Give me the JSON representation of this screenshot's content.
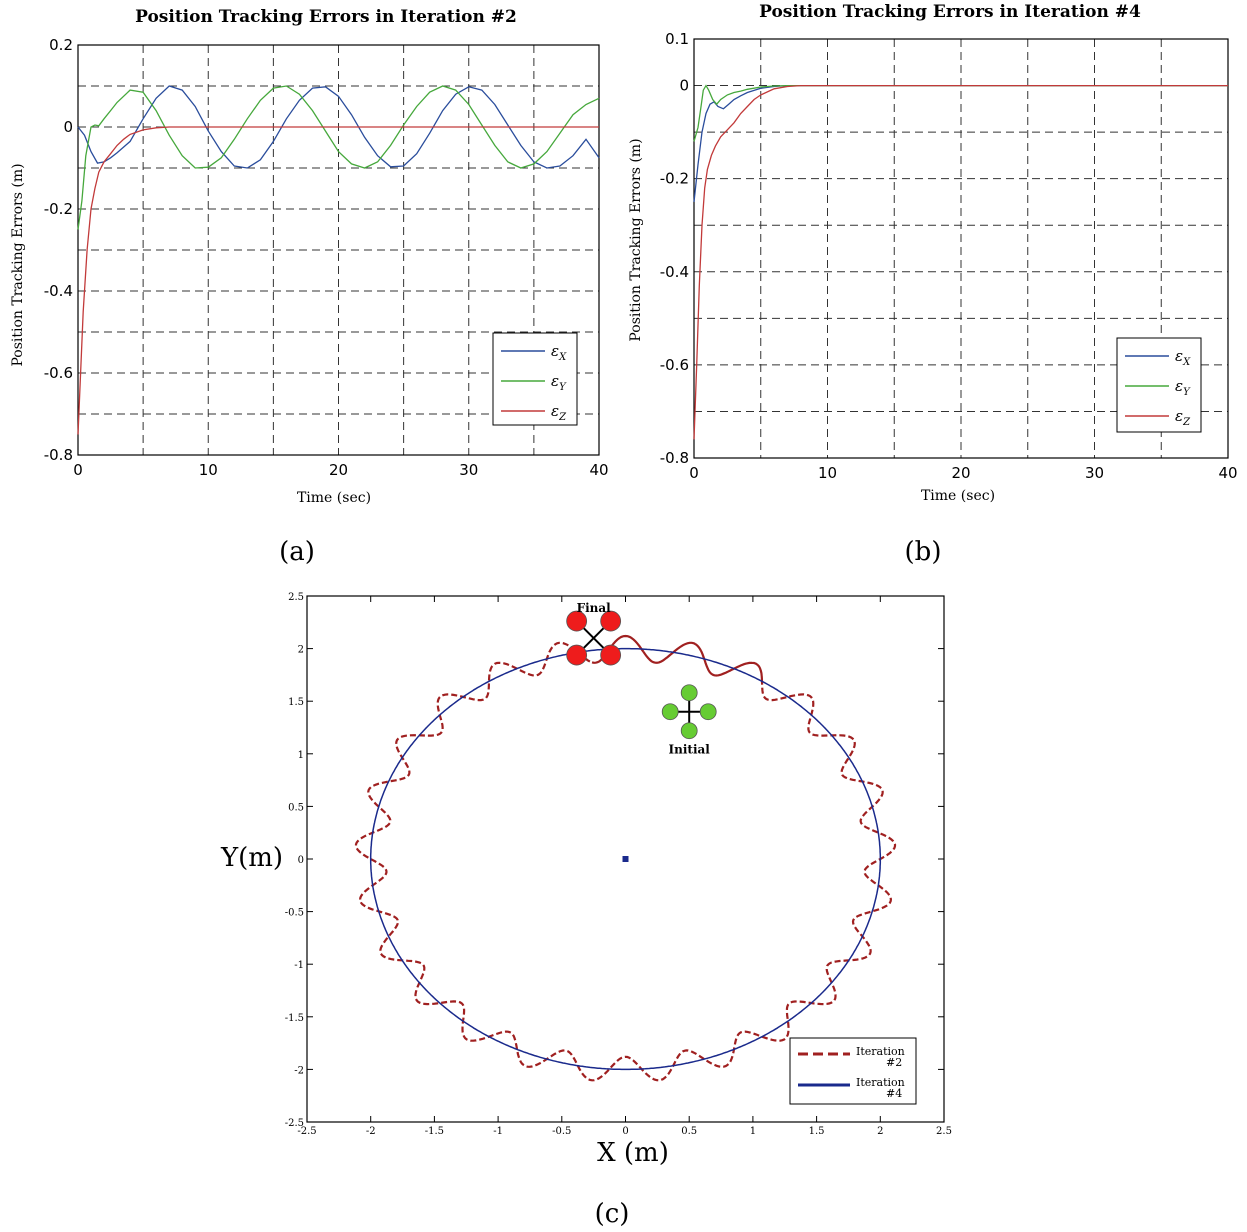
{
  "chart_data": [
    {
      "id": "a",
      "type": "line",
      "title": "Position Tracking Errors in Iteration #2",
      "xlabel": "Time (sec)",
      "ylabel": "Position Tracking Errors (m)",
      "xlim": [
        0,
        40
      ],
      "ylim": [
        -0.8,
        0.2
      ],
      "xticks": [
        0,
        10,
        20,
        30,
        40
      ],
      "xtick_labels": [
        "0",
        "10",
        "20",
        "30",
        "40"
      ],
      "yticks": [
        0.2,
        0,
        -0.2,
        -0.4,
        -0.6,
        -0.8
      ],
      "ytick_labels": [
        "0.2",
        "0",
        "-0.2",
        "-0.4",
        "-0.6",
        "-0.8"
      ],
      "grid": true,
      "legend": "bottom-right",
      "caption": "(a)",
      "series": [
        {
          "name": "ε",
          "sub": "X",
          "color": "#2a4d9c",
          "x": [
            0,
            0.5,
            1,
            1.5,
            2,
            2.5,
            3,
            4,
            5,
            6,
            7,
            8,
            9,
            10,
            11,
            12,
            13,
            14,
            15,
            16,
            17,
            18,
            19,
            20,
            21,
            22,
            23,
            24,
            25,
            26,
            27,
            28,
            29,
            30,
            31,
            32,
            33,
            34,
            35,
            36,
            37,
            38,
            39,
            40
          ],
          "y": [
            0,
            -0.02,
            -0.06,
            -0.088,
            -0.085,
            -0.075,
            -0.063,
            -0.035,
            0.02,
            0.07,
            0.1,
            0.09,
            0.05,
            -0.01,
            -0.06,
            -0.095,
            -0.1,
            -0.08,
            -0.035,
            0.02,
            0.065,
            0.095,
            0.098,
            0.075,
            0.03,
            -0.025,
            -0.07,
            -0.097,
            -0.095,
            -0.065,
            -0.015,
            0.04,
            0.08,
            0.098,
            0.09,
            0.055,
            0.005,
            -0.045,
            -0.085,
            -0.1,
            -0.095,
            -0.07,
            -0.03,
            -0.075
          ]
        },
        {
          "name": "ε",
          "sub": "Y",
          "color": "#46a83c",
          "x": [
            0,
            0.3,
            0.6,
            1,
            1.3,
            1.6,
            2,
            2.5,
            3,
            4,
            5,
            6,
            7,
            8,
            9,
            10,
            11,
            12,
            13,
            14,
            15,
            16,
            17,
            18,
            19,
            20,
            21,
            22,
            23,
            24,
            25,
            26,
            27,
            28,
            29,
            30,
            31,
            32,
            33,
            34,
            35,
            36,
            37,
            38,
            39,
            40
          ],
          "y": [
            -0.25,
            -0.18,
            -0.07,
            0,
            0.005,
            0.003,
            0.02,
            0.04,
            0.06,
            0.09,
            0.085,
            0.04,
            -0.02,
            -0.07,
            -0.1,
            -0.098,
            -0.075,
            -0.03,
            0.02,
            0.065,
            0.095,
            0.1,
            0.08,
            0.04,
            -0.01,
            -0.06,
            -0.09,
            -0.1,
            -0.085,
            -0.045,
            0.005,
            0.05,
            0.085,
            0.1,
            0.09,
            0.055,
            0.005,
            -0.045,
            -0.085,
            -0.1,
            -0.09,
            -0.06,
            -0.015,
            0.03,
            0.055,
            0.07
          ]
        },
        {
          "name": "ε",
          "sub": "Z",
          "color": "#c23a3a",
          "x": [
            0,
            0.2,
            0.4,
            0.7,
            1,
            1.3,
            1.6,
            2,
            2.5,
            3,
            3.5,
            4,
            5,
            6,
            7,
            8,
            10,
            15,
            20,
            25,
            30,
            35,
            40
          ],
          "y": [
            -0.75,
            -0.6,
            -0.45,
            -0.3,
            -0.2,
            -0.15,
            -0.11,
            -0.085,
            -0.065,
            -0.045,
            -0.03,
            -0.018,
            -0.007,
            -0.002,
            0,
            0,
            0,
            0,
            0,
            0,
            0,
            0,
            0
          ]
        }
      ]
    },
    {
      "id": "b",
      "type": "line",
      "title": "Position Tracking Errors in Iteration #4",
      "xlabel": "Time (sec)",
      "ylabel": "Position Tracking Errors (m)",
      "xlim": [
        0,
        40
      ],
      "ylim": [
        -0.8,
        0.1
      ],
      "xticks": [
        0,
        10,
        20,
        30,
        40
      ],
      "xtick_labels": [
        "0",
        "10",
        "20",
        "30",
        "40"
      ],
      "yticks": [
        0.1,
        0,
        -0.2,
        -0.4,
        -0.6,
        -0.8
      ],
      "ytick_labels": [
        "0.1",
        "0",
        "-0.2",
        "-0.4",
        "-0.6",
        "-0.8"
      ],
      "grid": true,
      "legend": "bottom-right",
      "caption": "(b)",
      "series": [
        {
          "name": "ε",
          "sub": "X",
          "color": "#2a4d9c",
          "x": [
            0,
            0.3,
            0.6,
            0.9,
            1.2,
            1.5,
            1.8,
            2.2,
            2.6,
            3,
            3.5,
            4,
            5,
            6,
            7,
            8,
            10,
            20,
            30,
            40
          ],
          "y": [
            -0.25,
            -0.17,
            -0.1,
            -0.06,
            -0.04,
            -0.035,
            -0.045,
            -0.05,
            -0.04,
            -0.03,
            -0.022,
            -0.015,
            -0.006,
            -0.002,
            0,
            0,
            0,
            0,
            0,
            0
          ]
        },
        {
          "name": "ε",
          "sub": "Y",
          "color": "#46a83c",
          "x": [
            0,
            0.3,
            0.5,
            0.7,
            0.9,
            1.1,
            1.4,
            1.7,
            2,
            2.5,
            3,
            3.5,
            4,
            5,
            6,
            7,
            8,
            10,
            20,
            30,
            40
          ],
          "y": [
            -0.12,
            -0.09,
            -0.05,
            -0.01,
            0,
            -0.01,
            -0.03,
            -0.04,
            -0.03,
            -0.02,
            -0.015,
            -0.012,
            -0.008,
            -0.003,
            -0.001,
            0,
            0,
            0,
            0,
            0,
            0
          ]
        },
        {
          "name": "ε",
          "sub": "Z",
          "color": "#c23a3a",
          "x": [
            0,
            0.2,
            0.4,
            0.6,
            0.8,
            1,
            1.3,
            1.6,
            2,
            2.5,
            3,
            3.5,
            4,
            4.5,
            5,
            6,
            7,
            8,
            10,
            20,
            30,
            40
          ],
          "y": [
            -0.76,
            -0.6,
            -0.43,
            -0.3,
            -0.22,
            -0.18,
            -0.15,
            -0.13,
            -0.11,
            -0.095,
            -0.08,
            -0.06,
            -0.045,
            -0.03,
            -0.02,
            -0.007,
            -0.002,
            0,
            0,
            0,
            0,
            0
          ]
        }
      ]
    },
    {
      "id": "c",
      "type": "line",
      "xlabel": "X (m)",
      "ylabel": "Y(m)",
      "xlim": [
        -2.5,
        2.5
      ],
      "ylim": [
        -2.5,
        2.5
      ],
      "xticks": [
        -2.5,
        -2,
        -1.5,
        -1,
        -0.5,
        0,
        0.5,
        1,
        1.5,
        2,
        2.5
      ],
      "xtick_labels": [
        "-2.5",
        "-2",
        "-1.5",
        "-1",
        "-0.5",
        "0",
        "0.5",
        "1",
        "1.5",
        "2",
        "2.5"
      ],
      "yticks": [
        2.5,
        2,
        1.5,
        1,
        0.5,
        0,
        -0.5,
        -1,
        -1.5,
        -2,
        -2.5
      ],
      "ytick_labels": [
        "2.5",
        "2",
        "1.5",
        "1",
        "0.5",
        "0",
        "-0.5",
        "-1",
        "-1.5",
        "-2",
        "-2.5"
      ],
      "grid": false,
      "legend": "bottom-right",
      "caption": "(c)",
      "series": [
        {
          "name": "Iteration #2",
          "color": "#a02020",
          "style": "dashed",
          "param": {
            "kind": "circle-wavy",
            "radius": 2.0,
            "amplitude": 0.12,
            "waves": 25,
            "theta_start_deg": 58,
            "theta_end_deg": 458
          }
        },
        {
          "name": "Iteration #4",
          "color": "#1a2a8c",
          "style": "solid",
          "param": {
            "kind": "circle",
            "radius": 2.0,
            "theta_start_deg": 58,
            "theta_end_deg": 458
          }
        }
      ],
      "center_marker": {
        "x": 0,
        "y": 0,
        "color": "#1a2a8c"
      },
      "annotations": [
        {
          "text": "Final",
          "x": -0.25,
          "y": 2.1,
          "rotor_color": "#ee1c1c"
        },
        {
          "text": "Initial",
          "x": 0.5,
          "y": 1.4,
          "rotor_color": "#66cc33"
        }
      ]
    }
  ]
}
